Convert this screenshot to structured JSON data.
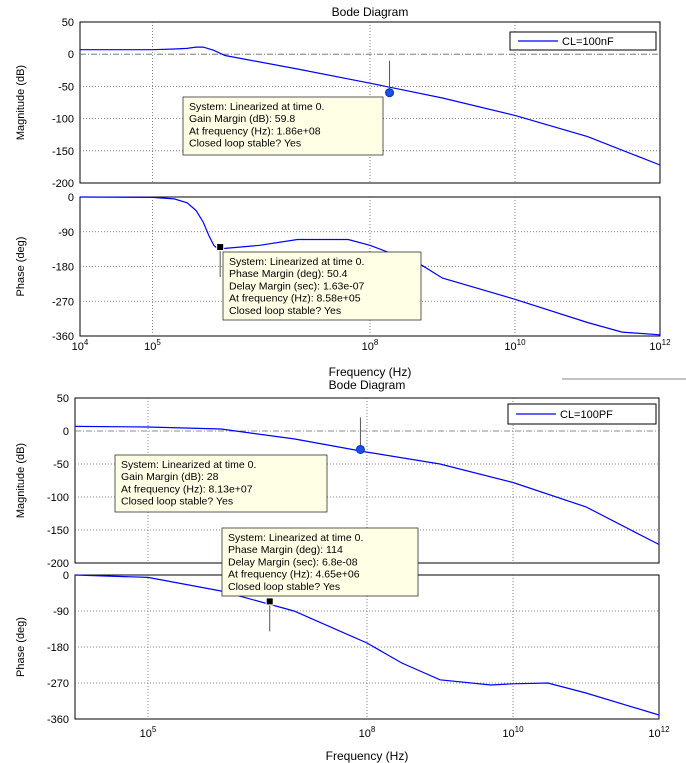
{
  "chart_data": [
    {
      "type": "line",
      "title": "Bode Diagram",
      "xlabel": "Frequency (Hz)",
      "x_scale": "log",
      "xlim": [
        10000,
        1000000000000
      ],
      "x_ticks": [
        10000,
        100000,
        100000000,
        10000000000,
        1000000000000
      ],
      "x_tick_labels": [
        {
          "base": "10",
          "exp": "4"
        },
        {
          "base": "10",
          "exp": "5"
        },
        {
          "base": "10",
          "exp": "8"
        },
        {
          "base": "10",
          "exp": "10"
        },
        {
          "base": "10",
          "exp": "12"
        }
      ],
      "legend": {
        "label": "CL=100nF",
        "placement": "top-right"
      },
      "color": "#0000ff",
      "grid": true,
      "magnitude": {
        "ylabel": "Magnitude (dB)",
        "ylim": [
          -200,
          50
        ],
        "y_ticks": [
          50,
          0,
          -50,
          -100,
          -150,
          -200
        ],
        "x": [
          10000,
          100000,
          200000,
          300000,
          400000,
          500000,
          700000,
          1000000,
          10000000,
          100000000,
          1000000000,
          10000000000,
          100000000000,
          1000000000000
        ],
        "y": [
          7,
          7,
          8,
          9,
          11,
          11,
          6,
          -2,
          -23,
          -45,
          -68,
          -95,
          -128,
          -172
        ],
        "marker": {
          "x": 186000000,
          "y": -59.8,
          "shape": "circle"
        },
        "datatip": [
          "System: Linearized at time 0.",
          "Gain Margin (dB): 59.8",
          "At frequency (Hz): 1.86e+08",
          "Closed loop stable? Yes"
        ]
      },
      "phase": {
        "ylabel": "Phase (deg)",
        "ylim": [
          -360,
          0
        ],
        "y_ticks": [
          0,
          -90,
          -180,
          -270,
          -360
        ],
        "x": [
          10000,
          100000,
          200000,
          300000,
          400000,
          500000,
          600000,
          700000,
          800000,
          1000000,
          3000000,
          10000000,
          50000000,
          100000000,
          500000000,
          1000000000,
          10000000000,
          100000000000,
          300000000000,
          1000000000000
        ],
        "y": [
          0,
          -1,
          -5,
          -15,
          -35,
          -65,
          -100,
          -125,
          -135,
          -133,
          -125,
          -110,
          -110,
          -125,
          -175,
          -210,
          -265,
          -325,
          -350,
          -357
        ],
        "marker": {
          "x": 858000,
          "y": -129.6,
          "shape": "square"
        },
        "datatip": [
          "System: Linearized at time 0.",
          "Phase Margin (deg): 50.4",
          "Delay Margin (sec): 1.63e-07",
          "At frequency (Hz): 8.58e+05",
          "Closed loop stable? Yes"
        ]
      }
    },
    {
      "type": "line",
      "title": "Bode Diagram",
      "xlabel": "Frequency (Hz)",
      "x_scale": "log",
      "xlim": [
        10000,
        1000000000000
      ],
      "x_ticks": [
        100000,
        100000000,
        10000000000,
        1000000000000
      ],
      "x_tick_labels": [
        {
          "base": "10",
          "exp": "5"
        },
        {
          "base": "10",
          "exp": "8"
        },
        {
          "base": "10",
          "exp": "10"
        },
        {
          "base": "10",
          "exp": "12"
        }
      ],
      "legend": {
        "label": "CL=100PF",
        "placement": "top-right"
      },
      "color": "#0000ff",
      "grid": true,
      "magnitude": {
        "ylabel": "Magnitude (dB)",
        "ylim": [
          -200,
          50
        ],
        "y_ticks": [
          50,
          0,
          -50,
          -100,
          -150,
          -200
        ],
        "x": [
          10000,
          100000,
          1000000,
          10000000,
          100000000,
          1000000000,
          10000000000,
          100000000000,
          1000000000000
        ],
        "y": [
          7,
          6,
          3,
          -12,
          -32,
          -50,
          -78,
          -115,
          -172
        ],
        "marker": {
          "x": 81300000,
          "y": -28,
          "shape": "circle"
        },
        "datatip": [
          "System: Linearized at time 0.",
          "Gain Margin (dB): 28",
          "At frequency (Hz): 8.13e+07",
          "Closed loop stable? Yes"
        ]
      },
      "phase": {
        "ylabel": "Phase (deg)",
        "ylim": [
          -360,
          0
        ],
        "y_ticks": [
          0,
          -90,
          -180,
          -270,
          -360
        ],
        "x": [
          10000,
          100000,
          1000000,
          10000000,
          100000000,
          300000000,
          1000000000,
          5000000000,
          10000000000,
          30000000000,
          100000000000,
          1000000000000
        ],
        "y": [
          0,
          -6,
          -40,
          -90,
          -170,
          -220,
          -262,
          -275,
          -272,
          -270,
          -295,
          -350
        ],
        "marker": {
          "x": 4650000,
          "y": -66,
          "shape": "square"
        },
        "datatip": [
          "System: Linearized at time 0.",
          "Phase Margin (deg): 114",
          "Delay Margin (sec): 6.8e-08",
          "At frequency (Hz): 4.65e+06",
          "Closed loop stable? Yes"
        ]
      }
    }
  ]
}
